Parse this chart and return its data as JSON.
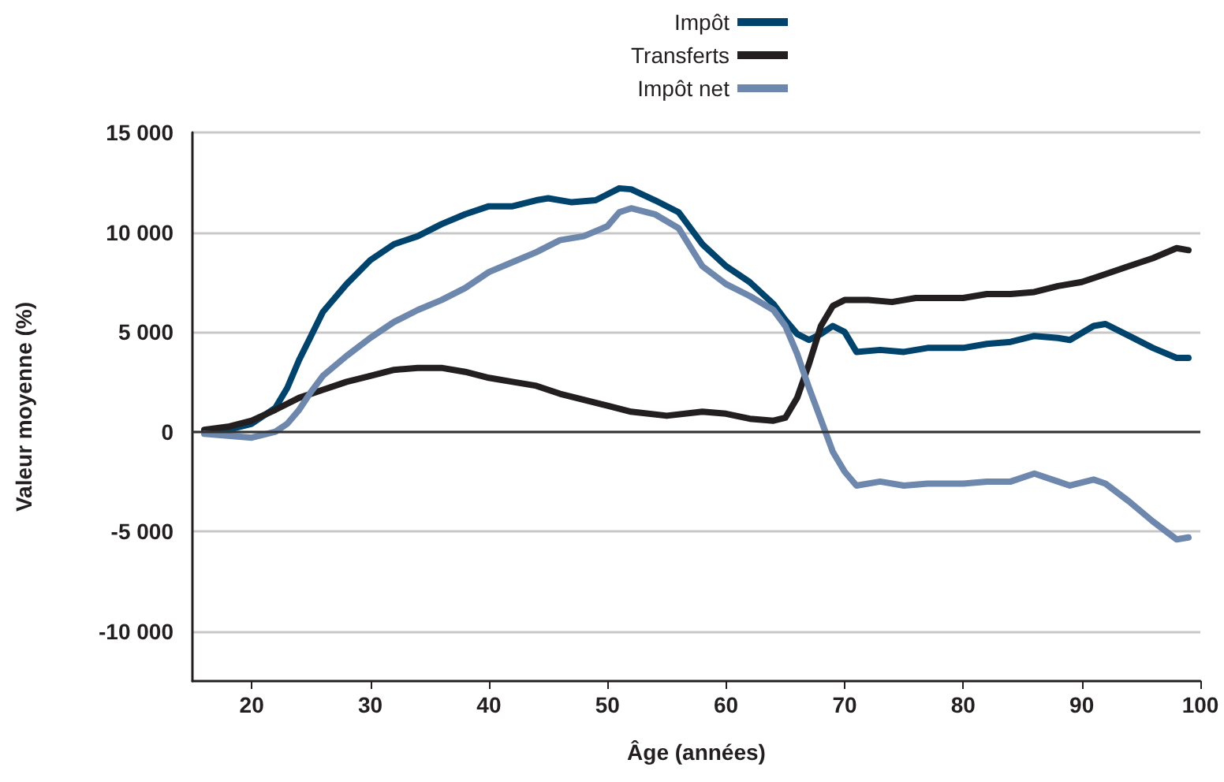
{
  "chart_data": {
    "type": "line",
    "xlabel": "Âge (années)",
    "ylabel": "Valeur moyenne (%)",
    "xlim": [
      15,
      100
    ],
    "xticks": [
      20,
      30,
      40,
      50,
      60,
      70,
      80,
      90,
      100
    ],
    "ylim": [
      -12500,
      15000
    ],
    "yticks": [
      {
        "value": -10000,
        "label": "-10 000"
      },
      {
        "value": -5000,
        "label": "-5 000"
      },
      0,
      {
        "value": 5000,
        "label": "5 000"
      },
      {
        "value": 10000,
        "label": "10 000"
      },
      {
        "value": 15000,
        "label": "15 000"
      }
    ],
    "grid": "y",
    "legend": "top",
    "marker": "none",
    "line_style": "solid",
    "ref_lines": [
      {
        "axis": "y",
        "value": 0,
        "color": "#333333"
      }
    ],
    "series": [
      {
        "name": "Impôt",
        "color": "#00446e",
        "x": [
          16,
          18,
          20,
          22,
          23,
          24,
          25,
          26,
          28,
          30,
          32,
          34,
          36,
          38,
          40,
          42,
          44,
          45,
          47,
          49,
          51,
          52,
          54,
          56,
          58,
          60,
          62,
          64,
          65,
          66,
          67,
          68,
          69,
          70,
          71,
          73,
          75,
          77,
          80,
          82,
          84,
          86,
          88,
          89,
          91,
          92,
          94,
          96,
          98,
          99
        ],
        "values": [
          0,
          100,
          400,
          1200,
          2200,
          3600,
          4800,
          6000,
          7400,
          8600,
          9400,
          9800,
          10400,
          10900,
          11300,
          11300,
          11600,
          11700,
          11500,
          11600,
          12200,
          12150,
          11600,
          11000,
          9400,
          8300,
          7500,
          6400,
          5600,
          4900,
          4600,
          4900,
          5300,
          5000,
          4000,
          4100,
          4000,
          4200,
          4200,
          4400,
          4500,
          4800,
          4700,
          4600,
          5300,
          5400,
          4800,
          4200,
          3700,
          3700
        ]
      },
      {
        "name": "Transferts",
        "color": "#231f20",
        "x": [
          16,
          18,
          20,
          22,
          24,
          26,
          28,
          30,
          32,
          34,
          36,
          38,
          40,
          42,
          44,
          46,
          48,
          50,
          52,
          55,
          58,
          60,
          62,
          64,
          65,
          66,
          67,
          68,
          69,
          70,
          72,
          74,
          76,
          78,
          80,
          82,
          84,
          86,
          88,
          90,
          92,
          94,
          96,
          98,
          99
        ],
        "values": [
          100,
          250,
          550,
          1100,
          1700,
          2100,
          2500,
          2800,
          3100,
          3200,
          3200,
          3000,
          2700,
          2500,
          2300,
          1900,
          1600,
          1300,
          1000,
          800,
          1000,
          900,
          650,
          550,
          700,
          1700,
          3400,
          5300,
          6300,
          6600,
          6600,
          6500,
          6700,
          6700,
          6700,
          6900,
          6900,
          7000,
          7300,
          7500,
          7900,
          8300,
          8700,
          9200,
          9100
        ]
      },
      {
        "name": "Impôt net",
        "color": "#6d87ad",
        "x": [
          16,
          18,
          20,
          22,
          23,
          24,
          25,
          26,
          28,
          30,
          32,
          34,
          36,
          38,
          40,
          42,
          44,
          46,
          48,
          50,
          51,
          52,
          54,
          56,
          58,
          60,
          62,
          64,
          65,
          66,
          67,
          68,
          69,
          70,
          71,
          73,
          75,
          77,
          80,
          82,
          84,
          86,
          88,
          89,
          91,
          92,
          94,
          96,
          98,
          99
        ],
        "values": [
          -100,
          -200,
          -300,
          0,
          400,
          1100,
          2000,
          2800,
          3800,
          4700,
          5500,
          6100,
          6600,
          7200,
          8000,
          8500,
          9000,
          9600,
          9800,
          10300,
          11000,
          11200,
          10900,
          10200,
          8300,
          7400,
          6800,
          6100,
          5300,
          3900,
          2200,
          600,
          -1000,
          -2000,
          -2700,
          -2500,
          -2700,
          -2600,
          -2600,
          -2500,
          -2500,
          -2100,
          -2500,
          -2700,
          -2400,
          -2600,
          -3500,
          -4500,
          -5400,
          -5300
        ]
      }
    ]
  }
}
